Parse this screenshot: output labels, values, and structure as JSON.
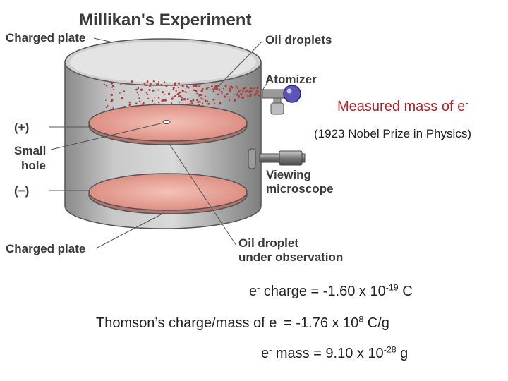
{
  "diagram": {
    "title": "Millikan's Experiment",
    "labels": {
      "charged_plate_top": "Charged plate",
      "oil_droplets": "Oil droplets",
      "atomizer": "Atomizer",
      "plus": "(+)",
      "small_hole_1": "Small",
      "small_hole_2": "hole",
      "minus": "(−)",
      "viewing_1": "Viewing",
      "viewing_2": "microscope",
      "charged_plate_bottom": "Charged plate",
      "oil_droplet_obs_1": "Oil droplet",
      "oil_droplet_obs_2": "under observation"
    }
  },
  "note": {
    "measured_prefix": "Measured mass of e",
    "measured_sup": "-",
    "nobel": "(1923 Nobel Prize in Physics)"
  },
  "equations": {
    "charge": {
      "a": "e",
      "a_sup": "-",
      "b": " charge = -1.60 x 10",
      "b_sup": "-19",
      "c": " C"
    },
    "ratio": {
      "a": "Thomson’s charge/mass of e",
      "a_sup": "-",
      "b": " = -1.76 x 10",
      "b_sup": "8",
      "c": " C/g"
    },
    "mass": {
      "a": "e",
      "a_sup": "-",
      "b": " mass = 9.10 x 10",
      "b_sup": "-28",
      "c": " g"
    }
  },
  "colors": {
    "accent_red": "#b0232b",
    "plate": "#e8a39a",
    "cylinder": "#b8b8b8"
  }
}
